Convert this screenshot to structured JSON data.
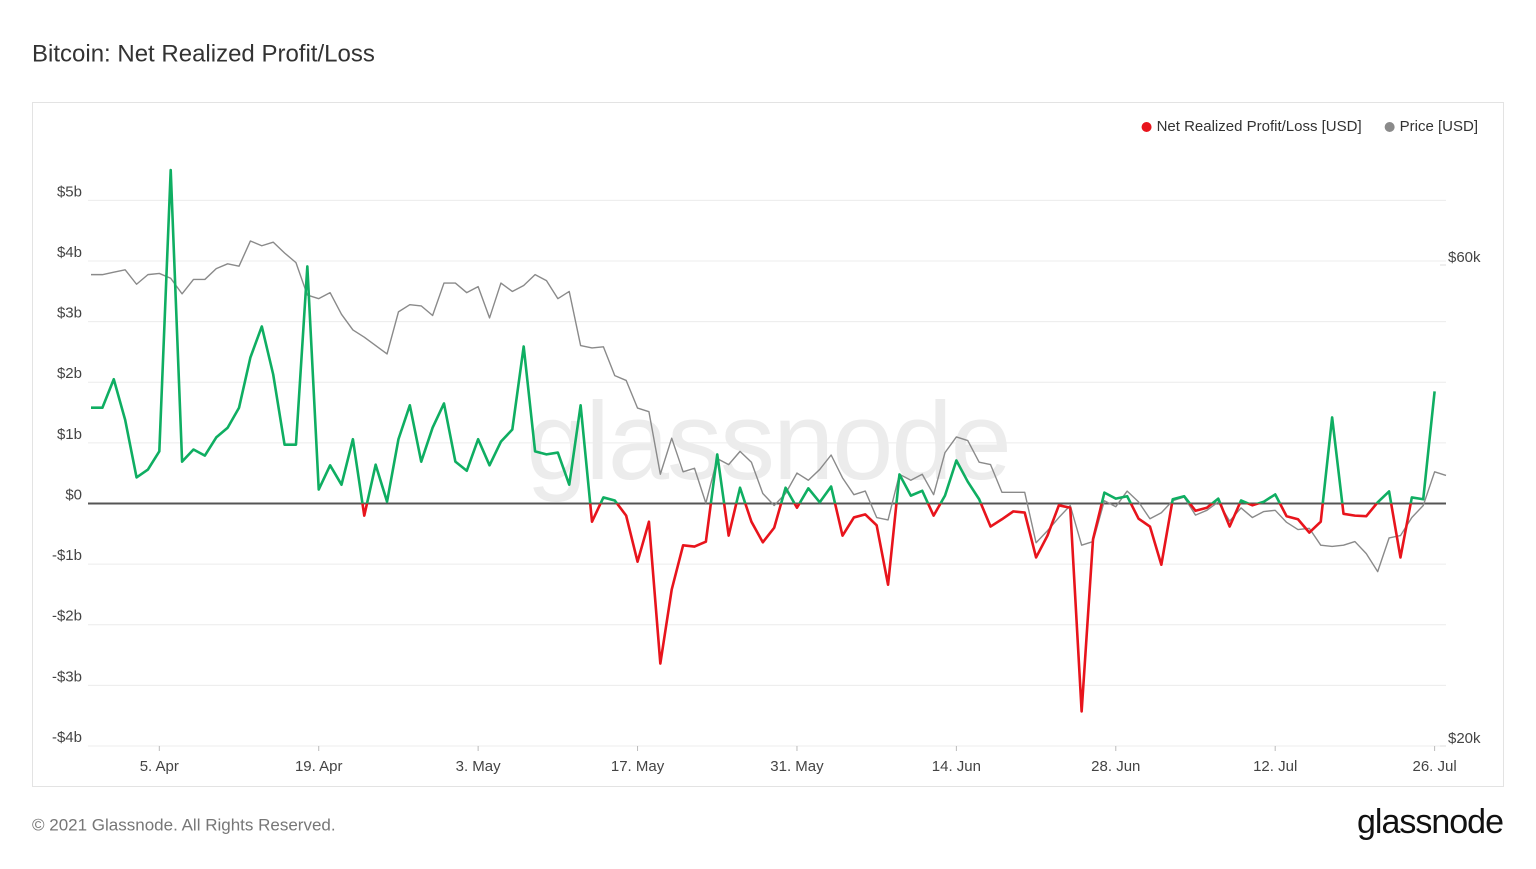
{
  "chart_data": {
    "type": "line",
    "title": "Bitcoin: Net Realized Profit/Loss",
    "watermark": "glassnode",
    "footer": "© 2021 Glassnode. All Rights Reserved.",
    "logo": "glassnode",
    "legend": "top-right",
    "grid": true,
    "x": [
      "30. Mar",
      "31. Mar",
      "1. Apr",
      "2. Apr",
      "3. Apr",
      "4. Apr",
      "5. Apr",
      "6. Apr",
      "7. Apr",
      "8. Apr",
      "9. Apr",
      "10. Apr",
      "11. Apr",
      "12. Apr",
      "13. Apr",
      "14. Apr",
      "15. Apr",
      "16. Apr",
      "17. Apr",
      "18. Apr",
      "19. Apr",
      "20. Apr",
      "21. Apr",
      "22. Apr",
      "23. Apr",
      "24. Apr",
      "25. Apr",
      "26. Apr",
      "27. Apr",
      "28. Apr",
      "29. Apr",
      "30. Apr",
      "1. May",
      "2. May",
      "3. May",
      "4. May",
      "5. May",
      "6. May",
      "7. May",
      "8. May",
      "9. May",
      "10. May",
      "11. May",
      "12. May",
      "13. May",
      "14. May",
      "15. May",
      "16. May",
      "17. May",
      "18. May",
      "19. May",
      "20. May",
      "21. May",
      "22. May",
      "23. May",
      "24. May",
      "25. May",
      "26. May",
      "27. May",
      "28. May",
      "29. May",
      "30. May",
      "31. May",
      "1. Jun",
      "2. Jun",
      "3. Jun",
      "4. Jun",
      "5. Jun",
      "6. Jun",
      "7. Jun",
      "8. Jun",
      "9. Jun",
      "10. Jun",
      "11. Jun",
      "12. Jun",
      "13. Jun",
      "14. Jun",
      "15. Jun",
      "16. Jun",
      "17. Jun",
      "18. Jun",
      "19. Jun",
      "20. Jun",
      "21. Jun",
      "22. Jun",
      "23. Jun",
      "24. Jun",
      "25. Jun",
      "26. Jun",
      "27. Jun",
      "28. Jun",
      "29. Jun",
      "30. Jun",
      "1. Jul",
      "2. Jul",
      "3. Jul",
      "4. Jul",
      "5. Jul",
      "6. Jul",
      "7. Jul",
      "8. Jul",
      "9. Jul",
      "10. Jul",
      "11. Jul",
      "12. Jul",
      "13. Jul",
      "14. Jul",
      "15. Jul",
      "16. Jul",
      "17. Jul",
      "18. Jul",
      "19. Jul",
      "20. Jul",
      "21. Jul",
      "22. Jul",
      "23. Jul",
      "24. Jul",
      "25. Jul",
      "26. Jul",
      "27. Jul"
    ],
    "xticks": [
      "5. Apr",
      "19. Apr",
      "3. May",
      "17. May",
      "31. May",
      "14. Jun",
      "28. Jun",
      "12. Jul",
      "26. Jul"
    ],
    "ylim": [
      -4000000000.0,
      5600000000.0
    ],
    "yticks": [
      {
        "value": -4000000000.0,
        "label": "-$4b"
      },
      {
        "value": -3000000000.0,
        "label": "-$3b"
      },
      {
        "value": -2000000000.0,
        "label": "-$2b"
      },
      {
        "value": -1000000000.0,
        "label": "-$1b"
      },
      {
        "value": 0,
        "label": "$0"
      },
      {
        "value": 1000000000.0,
        "label": "$1b"
      },
      {
        "value": 2000000000.0,
        "label": "$2b"
      },
      {
        "value": 3000000000.0,
        "label": "$3b"
      },
      {
        "value": 4000000000.0,
        "label": "$4b"
      },
      {
        "value": 5000000000.0,
        "label": "$5b"
      }
    ],
    "y2lim": [
      20000,
      68400
    ],
    "y2ticks": [
      {
        "value": 20000,
        "label": "$20k"
      },
      {
        "value": 60000,
        "label": "$60k"
      }
    ],
    "series": [
      {
        "name": "Net Realized Profit/Loss [USD]",
        "color": "#e8141c",
        "positive_color": "#0fae62",
        "values": [
          1580000000.0,
          1580000000.0,
          2050000000.0,
          1380000000.0,
          430000000.0,
          560000000.0,
          860000000.0,
          5500000000.0,
          690000000.0,
          890000000.0,
          790000000.0,
          1090000000.0,
          1250000000.0,
          1580000000.0,
          2410000000.0,
          2920000000.0,
          2130000000.0,
          970000000.0,
          970000000.0,
          3910000000.0,
          230000000.0,
          630000000.0,
          310000000.0,
          1060000000.0,
          -200000000.0,
          640000000.0,
          30000000.0,
          1060000000.0,
          1620000000.0,
          690000000.0,
          1250000000.0,
          1650000000.0,
          690000000.0,
          540000000.0,
          1060000000.0,
          630000000.0,
          1020000000.0,
          1220000000.0,
          2590000000.0,
          860000000.0,
          810000000.0,
          840000000.0,
          310000000.0,
          1620000000.0,
          -300000000.0,
          100000000.0,
          50000000.0,
          -200000000.0,
          -960000000.0,
          -300000000.0,
          -2640000000.0,
          -1420000000.0,
          -690000000.0,
          -710000000.0,
          -630000000.0,
          810000000.0,
          -530000000.0,
          260000000.0,
          -300000000.0,
          -640000000.0,
          -400000000.0,
          260000000.0,
          -70000000.0,
          250000000.0,
          20000000.0,
          280000000.0,
          -530000000.0,
          -230000000.0,
          -180000000.0,
          -360000000.0,
          -1340000000.0,
          480000000.0,
          130000000.0,
          210000000.0,
          -200000000.0,
          130000000.0,
          710000000.0,
          360000000.0,
          70000000.0,
          -380000000.0,
          -260000000.0,
          -130000000.0,
          -150000000.0,
          -890000000.0,
          -530000000.0,
          -30000000.0,
          -70000000.0,
          -3430000000.0,
          -590000000.0,
          180000000.0,
          80000000.0,
          120000000.0,
          -250000000.0,
          -380000000.0,
          -1010000000.0,
          70000000.0,
          120000000.0,
          -120000000.0,
          -70000000.0,
          80000000.0,
          -380000000.0,
          50000000.0,
          -30000000.0,
          30000000.0,
          150000000.0,
          -210000000.0,
          -260000000.0,
          -480000000.0,
          -300000000.0,
          1420000000.0,
          -170000000.0,
          -200000000.0,
          -210000000.0,
          20000000.0,
          200000000.0,
          -890000000.0,
          100000000.0,
          70000000.0,
          1850000000.0,
          null
        ]
      },
      {
        "name": "Price [USD]",
        "color": "#8a8a8a",
        "axis": "y2",
        "values": [
          59200,
          59200,
          59400,
          59600,
          58400,
          59200,
          59300,
          58900,
          57600,
          58800,
          58800,
          59700,
          60100,
          59900,
          62000,
          61600,
          61900,
          61000,
          60200,
          57500,
          57200,
          57700,
          55900,
          54600,
          54000,
          53300,
          52600,
          56100,
          56700,
          56600,
          55800,
          58500,
          58500,
          57700,
          58200,
          55600,
          58500,
          57800,
          58300,
          59200,
          58700,
          57200,
          57800,
          53300,
          53100,
          53200,
          50800,
          50400,
          48100,
          47800,
          42600,
          45600,
          42800,
          43100,
          40200,
          43900,
          43400,
          44500,
          43600,
          41000,
          40000,
          41000,
          42700,
          42100,
          43000,
          44200,
          42300,
          40900,
          41200,
          39000,
          38800,
          42600,
          42100,
          42600,
          40900,
          44400,
          45700,
          45400,
          43600,
          43400,
          41100,
          41100,
          41100,
          36900,
          37900,
          39000,
          40000,
          36700,
          37000,
          40400,
          39900,
          41200,
          40300,
          38900,
          39400,
          40400,
          40700,
          39200,
          39600,
          40300,
          38700,
          39800,
          39000,
          39500,
          39600,
          38600,
          38000,
          38100,
          36700,
          36600,
          36700,
          37000,
          36000,
          34500,
          37300,
          37500,
          39000,
          40000,
          42800,
          42500
        ]
      }
    ]
  }
}
